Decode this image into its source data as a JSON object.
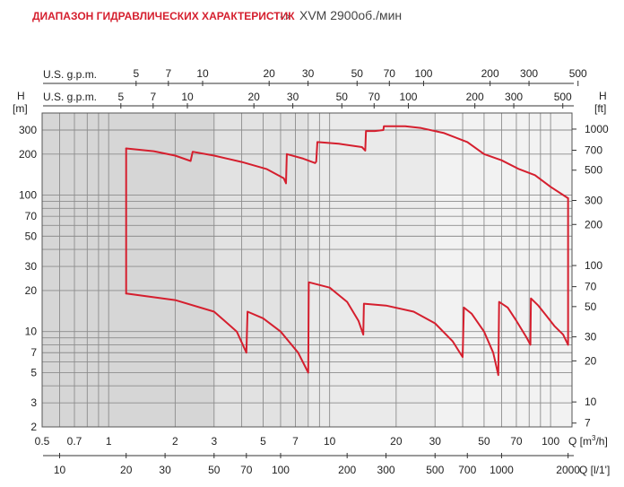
{
  "title": {
    "main": "ДИАПАЗОН ГИДРАВЛИЧЕСКИХ ХАРАКТЕРИСТИК",
    "separator": "-:›",
    "sub": "XVM 2900об./мин"
  },
  "colors": {
    "curve": "#d51f2e",
    "title": "#d51f2e",
    "grid": "#8c8c8c",
    "band_dark": "#d6d6d6",
    "band_light": "#f2f2f2"
  },
  "chart_data": {
    "type": "line",
    "x_scale": "log",
    "y_scale": "log",
    "axes": {
      "y_left": {
        "label": "H",
        "unit": "[m]",
        "ticks": [
          "2",
          "3",
          "5",
          "7",
          "10",
          "20",
          "30",
          "50",
          "70",
          "100",
          "200",
          "300"
        ]
      },
      "y_right": {
        "label": "H",
        "unit": "[ft]",
        "ticks": [
          "7",
          "10",
          "20",
          "30",
          "50",
          "70",
          "100",
          "200",
          "300",
          "500",
          "700",
          "1000"
        ]
      },
      "x_bottom_m3h": {
        "label": "Q [m³/h]",
        "ticks": [
          "0.5",
          "0.7",
          "1",
          "2",
          "3",
          "5",
          "7",
          "10",
          "20",
          "30",
          "50",
          "70",
          "100"
        ]
      },
      "x_bottom_l": {
        "label": "Q [l/1']",
        "ticks": [
          "10",
          "20",
          "30",
          "50",
          "70",
          "100",
          "200",
          "300",
          "500",
          "700",
          "1000",
          "2000"
        ]
      },
      "x_top_upper": {
        "label": "U.S. g.p.m.",
        "ticks": [
          "5",
          "7",
          "10",
          "20",
          "30",
          "50",
          "70",
          "100",
          "200",
          "300",
          "500"
        ]
      },
      "x_top_lower": {
        "label": "U.S. g.p.m.",
        "ticks": [
          "5",
          "7",
          "10",
          "20",
          "30",
          "50",
          "70",
          "100",
          "200",
          "300",
          "500"
        ]
      }
    },
    "xlim_m3h": [
      0.5,
      125
    ],
    "ylim_m": [
      2,
      400
    ],
    "grid": true,
    "envelope": {
      "name": "XVM 2900 rpm range",
      "upper": [
        [
          1.2,
          220
        ],
        [
          1.6,
          210
        ],
        [
          2.0,
          195
        ],
        [
          2.35,
          178
        ],
        [
          2.4,
          208
        ],
        [
          3.0,
          195
        ],
        [
          4.0,
          175
        ],
        [
          5.2,
          155
        ],
        [
          6.2,
          133
        ],
        [
          6.35,
          122
        ],
        [
          6.4,
          200
        ],
        [
          7.6,
          185
        ],
        [
          8.6,
          172
        ],
        [
          8.7,
          176
        ],
        [
          8.8,
          245
        ],
        [
          11,
          238
        ],
        [
          14,
          225
        ],
        [
          14.5,
          212
        ],
        [
          14.6,
          295
        ],
        [
          16,
          295
        ],
        [
          17.5,
          300
        ],
        [
          17.6,
          320
        ],
        [
          22,
          320
        ],
        [
          26,
          310
        ],
        [
          33,
          285
        ],
        [
          42,
          245
        ],
        [
          50,
          200
        ],
        [
          60,
          180
        ],
        [
          72,
          155
        ],
        [
          85,
          140
        ],
        [
          100,
          115
        ],
        [
          120,
          95
        ]
      ],
      "lower": [
        [
          1.2,
          19
        ],
        [
          2.0,
          17
        ],
        [
          3.0,
          14
        ],
        [
          3.8,
          10
        ],
        [
          4.2,
          7
        ],
        [
          4.25,
          14
        ],
        [
          5.0,
          12.5
        ],
        [
          6.0,
          10
        ],
        [
          7.2,
          7
        ],
        [
          8.0,
          5
        ],
        [
          8.05,
          23
        ],
        [
          10,
          21
        ],
        [
          12,
          16.5
        ],
        [
          13.5,
          12
        ],
        [
          14.2,
          9.5
        ],
        [
          14.3,
          16
        ],
        [
          18,
          15.5
        ],
        [
          24,
          14
        ],
        [
          30,
          11.5
        ],
        [
          36,
          8.5
        ],
        [
          40,
          6.5
        ],
        [
          40.5,
          15
        ],
        [
          44,
          13.5
        ],
        [
          50,
          10
        ],
        [
          55,
          7
        ],
        [
          58,
          4.8
        ],
        [
          58.5,
          16.5
        ],
        [
          64,
          15
        ],
        [
          70,
          12
        ],
        [
          78,
          9
        ],
        [
          81,
          8
        ],
        [
          81.5,
          17.5
        ],
        [
          88,
          15.5
        ],
        [
          96,
          13
        ],
        [
          104,
          11
        ],
        [
          114,
          9.5
        ],
        [
          120,
          8
        ]
      ],
      "left_q": 1.2,
      "right_q": 120
    }
  }
}
